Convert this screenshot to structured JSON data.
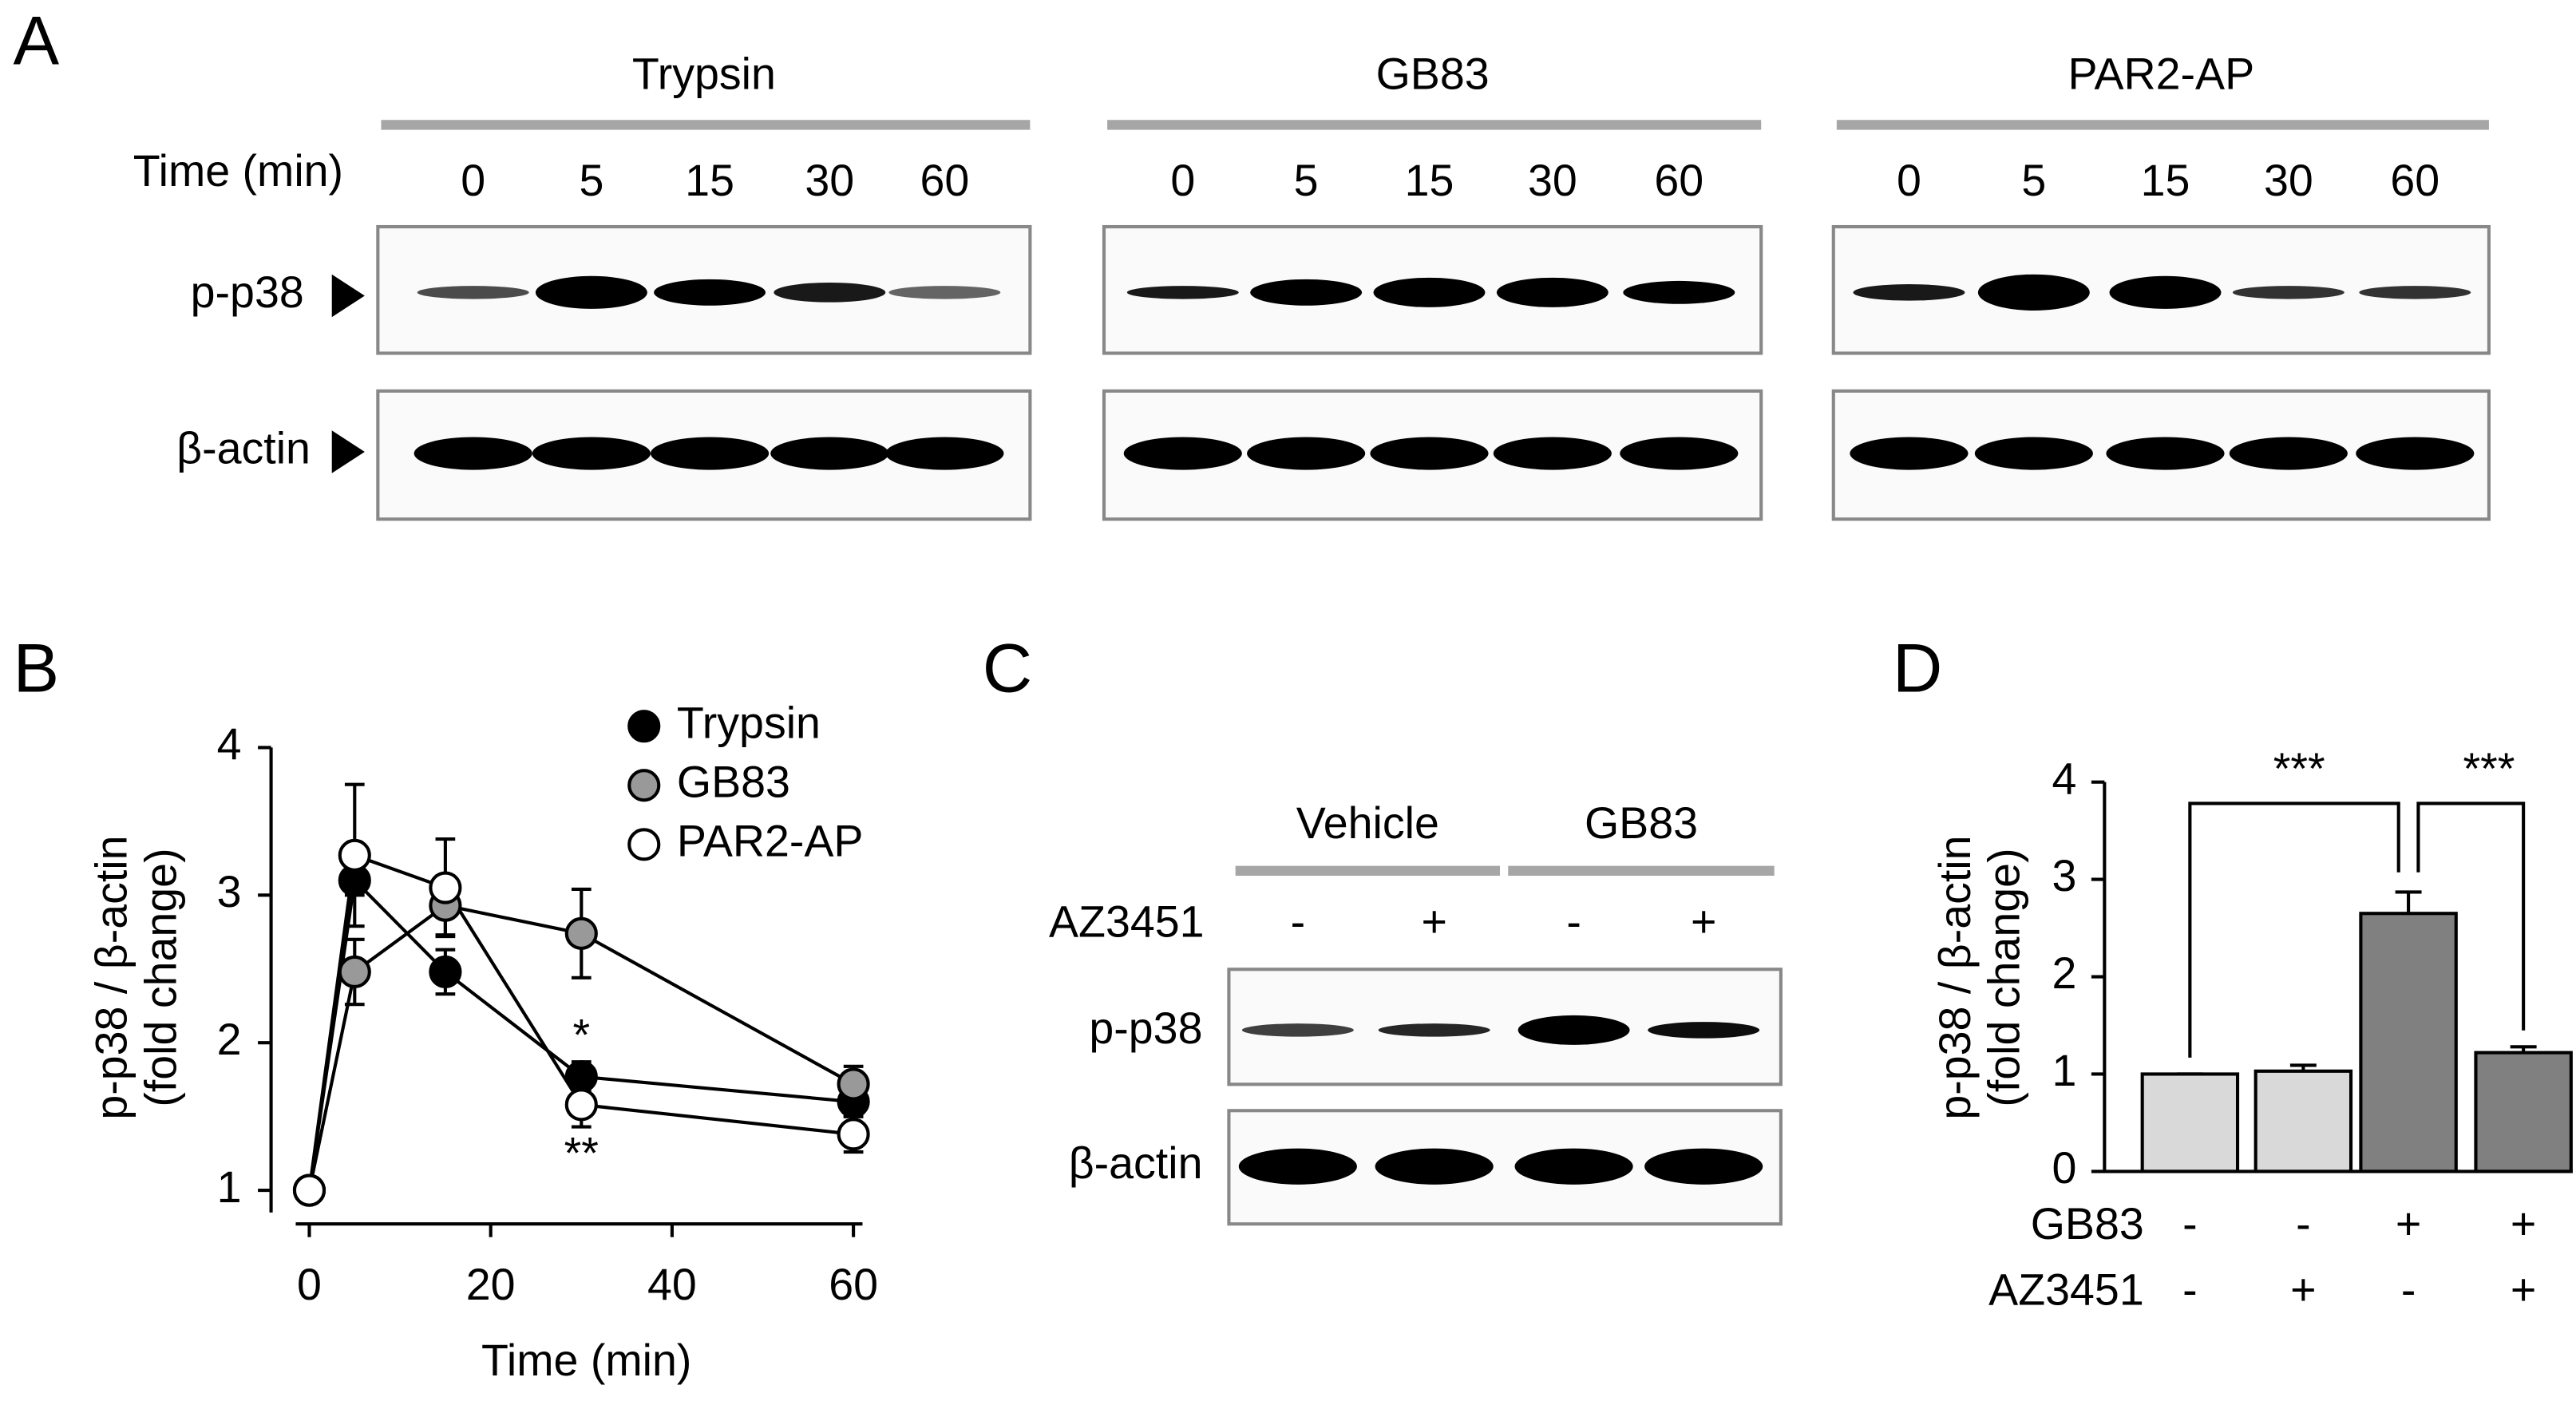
{
  "figure": {
    "panel_labels": [
      "A",
      "B",
      "C",
      "D"
    ]
  },
  "blots_a": {
    "groups": [
      "Trypsin",
      "GB83",
      "PAR2-AP"
    ],
    "time_label": "Time (min)",
    "times": [
      "0",
      "5",
      "15",
      "30",
      "60"
    ],
    "rows": [
      "p-p38",
      "β-actin"
    ]
  },
  "blot_c": {
    "groups": [
      "Vehicle",
      "GB83"
    ],
    "condition_label": "AZ3451",
    "conditions": [
      "-",
      "+",
      "-",
      "+"
    ],
    "rows": [
      "p-p38",
      "β-actin"
    ]
  },
  "chart_data": [
    {
      "type": "line",
      "xlabel": "Time (min)",
      "ylabel": [
        "p-p38 / β-actin",
        "(fold change)"
      ],
      "x": [
        0,
        5,
        15,
        30,
        60
      ],
      "xlim": [
        -1.5,
        61
      ],
      "xticks": [
        0,
        20,
        40,
        60
      ],
      "ylim": [
        0.85,
        4
      ],
      "yticks": [
        1,
        2,
        3,
        4
      ],
      "legend": "upper right",
      "series": [
        {
          "name": "Trypsin",
          "color": "#000000",
          "values": [
            1.0,
            3.1,
            2.48,
            1.77,
            1.6
          ],
          "errors": [
            0,
            0.1,
            0.15,
            0.1,
            0.1
          ]
        },
        {
          "name": "GB83",
          "color": "#999999",
          "values": [
            1.0,
            2.48,
            2.93,
            2.74,
            1.72
          ],
          "errors": [
            0,
            0.22,
            0.2,
            0.3,
            0.12
          ]
        },
        {
          "name": "PAR2-AP",
          "color": "#ffffff",
          "values": [
            1.0,
            3.27,
            3.05,
            1.58,
            1.38
          ],
          "errors": [
            0,
            0.48,
            0.33,
            0.15,
            0.12
          ]
        }
      ],
      "annotations": [
        "*",
        "**"
      ]
    },
    {
      "type": "bar",
      "ylabel": [
        "p-p38 / β-actin",
        "(fold change)"
      ],
      "categories": [
        null,
        null,
        null,
        null
      ],
      "values": [
        1.0,
        1.03,
        2.65,
        1.22
      ],
      "errors": [
        0,
        0.06,
        0.22,
        0.06
      ],
      "colors": [
        "#d9d9d9",
        "#d9d9d9",
        "#808080",
        "#808080"
      ],
      "ylim": [
        0,
        4
      ],
      "yticks": [
        0,
        1,
        2,
        3,
        4
      ],
      "conditions": [
        {
          "name": "GB83",
          "values": [
            "-",
            "-",
            "+",
            "+"
          ]
        },
        {
          "name": "AZ3451",
          "values": [
            "-",
            "+",
            "-",
            "+"
          ]
        }
      ],
      "annotations": [
        "***",
        "***"
      ]
    }
  ]
}
